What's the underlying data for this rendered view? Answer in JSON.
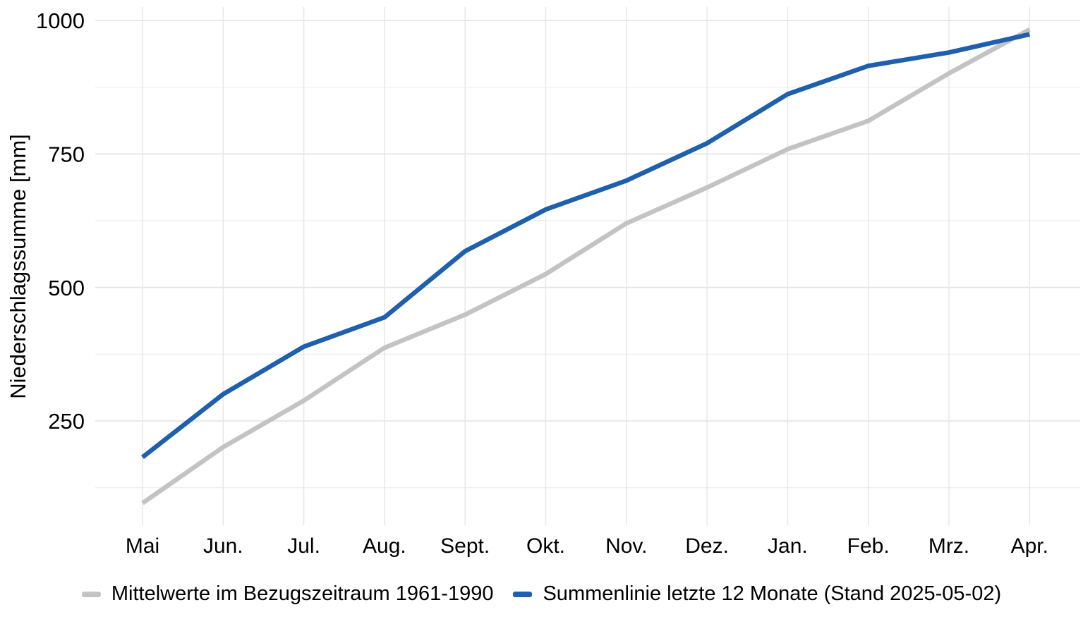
{
  "chart_data": {
    "type": "line",
    "title": "",
    "xlabel": "",
    "ylabel": "Niederschlagssumme [mm]",
    "categories": [
      "Mai",
      "Jun.",
      "Jul.",
      "Aug.",
      "Sept.",
      "Okt.",
      "Nov.",
      "Dez.",
      "Jan.",
      "Feb.",
      "Mrz.",
      "Apr."
    ],
    "series": [
      {
        "name": "Mittelwerte im Bezugszeitraum 1961-1990",
        "color": "#c3c3c3",
        "values": [
          96,
          201,
          288,
          387,
          449,
          525,
          620,
          687,
          759,
          812,
          901,
          983
        ]
      },
      {
        "name": "Summenlinie letzte 12 Monate (Stand 2025-05-02)",
        "color": "#1e5fae",
        "values": [
          182,
          300,
          389,
          444,
          568,
          646,
          700,
          770,
          862,
          915,
          940,
          974
        ]
      }
    ],
    "y_ticks": [
      250,
      500,
      750,
      1000
    ],
    "y_minor_gridlines": [
      125,
      375,
      625,
      875
    ],
    "ylim": [
      56,
      1026
    ],
    "grid": true,
    "legend_position": "bottom",
    "colors": {
      "background": "#ffffff",
      "major_gridline": "#e2e2e2",
      "minor_gridline": "#ececec",
      "vertical_gridline": "#e7e7e7",
      "text": "#000000"
    }
  }
}
